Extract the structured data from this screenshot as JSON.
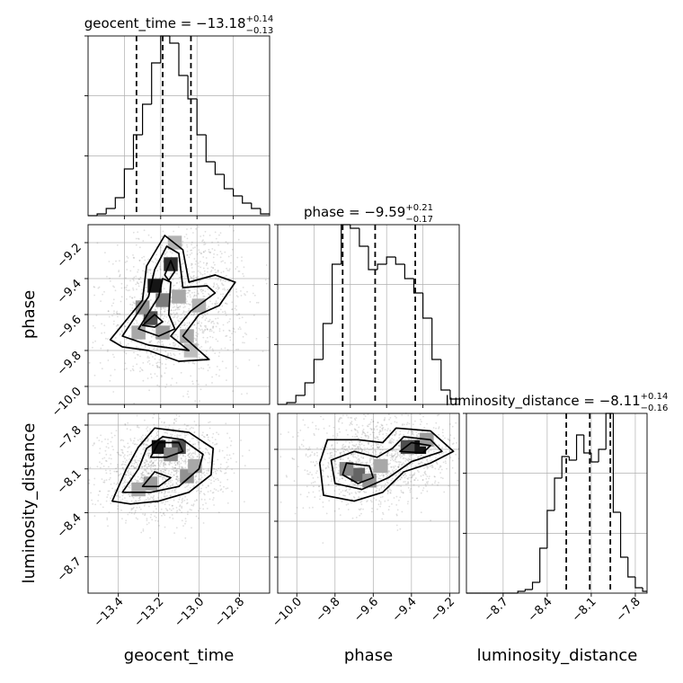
{
  "figure": {
    "type": "corner_plot",
    "parameters": [
      "geocent_time",
      "phase",
      "luminosity_distance"
    ]
  },
  "chart_data": [
    {
      "id": "hist_geocent_time",
      "type": "bar",
      "subtype": "step-histogram",
      "title": {
        "main": "geocent_time = −13.18",
        "sup": "+0.14",
        "sub": "−0.13"
      },
      "xlim": [
        -13.55,
        -12.65
      ],
      "ylim": [
        0,
        1
      ],
      "bin_edges": [
        -13.55,
        -13.505,
        -13.46,
        -13.415,
        -13.37,
        -13.325,
        -13.28,
        -13.235,
        -13.19,
        -13.145,
        -13.1,
        -13.055,
        -13.01,
        -12.965,
        -12.92,
        -12.875,
        -12.83,
        -12.785,
        -12.74,
        -12.695,
        -12.65
      ],
      "counts": [
        0.0,
        0.01,
        0.04,
        0.1,
        0.26,
        0.45,
        0.62,
        0.85,
        1.0,
        0.96,
        0.78,
        0.65,
        0.45,
        0.3,
        0.23,
        0.15,
        0.11,
        0.07,
        0.04,
        0.01
      ],
      "quantiles": [
        -13.31,
        -13.18,
        -13.04
      ],
      "grid": true,
      "legend": "none",
      "show_xticklabels": false,
      "show_yticklabels": false
    },
    {
      "id": "hist_phase",
      "type": "bar",
      "subtype": "step-histogram",
      "title": {
        "main": "phase = −9.59",
        "sup": "+0.21",
        "sub": "−0.17"
      },
      "xlim": [
        -10.1,
        -9.15
      ],
      "ylim": [
        0,
        1
      ],
      "bin_edges": [
        -10.1,
        -10.0525,
        -10.005,
        -9.9575,
        -9.91,
        -9.8625,
        -9.815,
        -9.7675,
        -9.72,
        -9.6725,
        -9.625,
        -9.5775,
        -9.53,
        -9.4825,
        -9.435,
        -9.3875,
        -9.34,
        -9.2925,
        -9.245,
        -9.1975,
        -9.15
      ],
      "counts": [
        0.0,
        0.01,
        0.05,
        0.12,
        0.25,
        0.45,
        0.78,
        1.0,
        0.98,
        0.88,
        0.75,
        0.78,
        0.82,
        0.78,
        0.7,
        0.62,
        0.48,
        0.25,
        0.08,
        0.03
      ],
      "quantiles": [
        -9.76,
        -9.59,
        -9.38
      ],
      "grid": true,
      "legend": "none",
      "show_xticklabels": false,
      "show_yticklabels": false
    },
    {
      "id": "hist_luminosity_distance",
      "type": "bar",
      "subtype": "step-histogram",
      "title": {
        "main": "luminosity_distance = −8.11",
        "sup": "+0.14",
        "sub": "−0.16"
      },
      "xlim": [
        -8.95,
        -7.72
      ],
      "ylim": [
        0,
        1
      ],
      "bin_edges": [
        -8.95,
        -8.9,
        -8.85,
        -8.8,
        -8.75,
        -8.7,
        -8.65,
        -8.6,
        -8.55,
        -8.5,
        -8.45,
        -8.4,
        -8.35,
        -8.3,
        -8.25,
        -8.2,
        -8.15,
        -8.1,
        -8.05,
        -8.0,
        -7.95,
        -7.9,
        -7.85,
        -7.8,
        -7.75,
        -7.72
      ],
      "counts": [
        0,
        0,
        0,
        0,
        0,
        0,
        0,
        0.01,
        0.02,
        0.06,
        0.25,
        0.46,
        0.64,
        0.76,
        0.74,
        0.88,
        0.78,
        0.73,
        0.8,
        1.0,
        0.45,
        0.2,
        0.09,
        0.03,
        0.01
      ],
      "quantiles": [
        -8.27,
        -8.11,
        -7.97
      ],
      "xticks": [
        -8.7,
        -8.4,
        -8.1,
        -7.8
      ],
      "xtick_labels": [
        "−8.7",
        "−8.4",
        "−8.1",
        "−7.8"
      ],
      "xlabel": "luminosity_distance",
      "grid": true,
      "legend": "none",
      "show_yticklabels": false
    },
    {
      "id": "density_geocent_time_phase",
      "type": "scatter",
      "subtype": "2d-density-contours",
      "x_param": "geocent_time",
      "y_param": "phase",
      "xlim": [
        -13.55,
        -12.65
      ],
      "ylim": [
        -10.1,
        -9.1
      ],
      "yticks": [
        -9.2,
        -9.4,
        -9.6,
        -9.8,
        -10.0
      ],
      "ytick_labels": [
        "−9.2",
        "−9.4",
        "−9.6",
        "−9.8",
        "−10.0"
      ],
      "ylabel": "phase",
      "contours": [
        [
          [
            -13.44,
            -9.74
          ],
          [
            -13.28,
            -9.52
          ],
          [
            -13.26,
            -9.33
          ],
          [
            -13.17,
            -9.16
          ],
          [
            -13.08,
            -9.24
          ],
          [
            -13.05,
            -9.42
          ],
          [
            -12.92,
            -9.38
          ],
          [
            -12.82,
            -9.42
          ],
          [
            -12.9,
            -9.55
          ],
          [
            -13.0,
            -9.6
          ],
          [
            -13.08,
            -9.72
          ],
          [
            -12.95,
            -9.85
          ],
          [
            -13.1,
            -9.86
          ],
          [
            -13.25,
            -9.8
          ],
          [
            -13.38,
            -9.78
          ]
        ],
        [
          [
            -13.38,
            -9.72
          ],
          [
            -13.25,
            -9.5
          ],
          [
            -13.22,
            -9.35
          ],
          [
            -13.16,
            -9.22
          ],
          [
            -13.1,
            -9.26
          ],
          [
            -13.08,
            -9.45
          ],
          [
            -12.96,
            -9.44
          ],
          [
            -12.92,
            -9.48
          ],
          [
            -13.04,
            -9.58
          ],
          [
            -13.14,
            -9.72
          ],
          [
            -13.05,
            -9.8
          ],
          [
            -13.25,
            -9.77
          ]
        ],
        [
          [
            -13.3,
            -9.68
          ],
          [
            -13.2,
            -9.5
          ],
          [
            -13.18,
            -9.4
          ],
          [
            -13.14,
            -9.42
          ],
          [
            -13.15,
            -9.6
          ],
          [
            -13.12,
            -9.68
          ],
          [
            -13.2,
            -9.72
          ]
        ],
        [
          [
            -13.28,
            -9.66
          ],
          [
            -13.22,
            -9.6
          ],
          [
            -13.18,
            -9.64
          ],
          [
            -13.22,
            -9.67
          ]
        ],
        [
          [
            -13.17,
            -9.38
          ],
          [
            -13.14,
            -9.3
          ],
          [
            -13.12,
            -9.36
          ],
          [
            -13.15,
            -9.41
          ]
        ]
      ],
      "density_cells": [
        [
          -13.22,
          -9.44,
          0.95
        ],
        [
          -13.14,
          -9.32,
          0.85
        ],
        [
          -13.24,
          -9.62,
          0.7
        ],
        [
          -13.18,
          -9.52,
          0.5
        ],
        [
          -13.28,
          -9.56,
          0.4
        ],
        [
          -13.18,
          -9.7,
          0.35
        ],
        [
          -13.06,
          -9.72,
          0.3
        ],
        [
          -13.3,
          -9.7,
          0.3
        ],
        [
          -13.1,
          -9.5,
          0.3
        ],
        [
          -13.0,
          -9.55,
          0.25
        ],
        [
          -13.12,
          -9.2,
          0.25
        ],
        [
          -13.04,
          -9.8,
          0.2
        ]
      ],
      "grid": true,
      "legend": "none",
      "show_xticklabels": false
    },
    {
      "id": "density_geocent_time_luminosity_distance",
      "type": "scatter",
      "subtype": "2d-density-contours",
      "x_param": "geocent_time",
      "y_param": "luminosity_distance",
      "xlim": [
        -13.55,
        -12.65
      ],
      "ylim": [
        -8.95,
        -7.72
      ],
      "xticks": [
        -13.4,
        -13.2,
        -13.0,
        -12.8
      ],
      "xtick_labels": [
        "−13.4",
        "−13.2",
        "−13.0",
        "−12.8"
      ],
      "yticks": [
        -7.8,
        -8.1,
        -8.4,
        -8.7
      ],
      "ytick_labels": [
        "−7.8",
        "−8.1",
        "−8.4",
        "−8.7"
      ],
      "xlabel": "geocent_time",
      "ylabel": "luminosity_distance",
      "contours": [
        [
          [
            -13.43,
            -8.32
          ],
          [
            -13.36,
            -8.1
          ],
          [
            -13.3,
            -7.95
          ],
          [
            -13.22,
            -7.82
          ],
          [
            -13.05,
            -7.85
          ],
          [
            -12.93,
            -7.96
          ],
          [
            -12.94,
            -8.14
          ],
          [
            -13.05,
            -8.26
          ],
          [
            -13.2,
            -8.32
          ],
          [
            -13.34,
            -8.34
          ]
        ],
        [
          [
            -13.38,
            -8.26
          ],
          [
            -13.3,
            -8.1
          ],
          [
            -13.26,
            -7.96
          ],
          [
            -13.18,
            -7.88
          ],
          [
            -13.08,
            -7.9
          ],
          [
            -12.98,
            -8.0
          ],
          [
            -13.0,
            -8.1
          ],
          [
            -13.1,
            -8.22
          ],
          [
            -13.24,
            -8.26
          ]
        ],
        [
          [
            -13.28,
            -8.22
          ],
          [
            -13.22,
            -8.12
          ],
          [
            -13.14,
            -8.16
          ],
          [
            -13.2,
            -8.22
          ]
        ],
        [
          [
            -13.24,
            -8.02
          ],
          [
            -13.2,
            -7.92
          ],
          [
            -13.1,
            -7.92
          ],
          [
            -13.08,
            -7.98
          ],
          [
            -13.16,
            -8.02
          ]
        ]
      ],
      "density_cells": [
        [
          -13.2,
          -7.95,
          0.95
        ],
        [
          -13.1,
          -7.95,
          0.7
        ],
        [
          -13.14,
          -8.0,
          0.45
        ],
        [
          -13.06,
          -8.15,
          0.4
        ],
        [
          -13.24,
          -8.2,
          0.35
        ],
        [
          -13.3,
          -8.24,
          0.3
        ],
        [
          -13.02,
          -8.08,
          0.3
        ]
      ],
      "grid": true,
      "legend": "none"
    },
    {
      "id": "density_phase_luminosity_distance",
      "type": "scatter",
      "subtype": "2d-density-contours",
      "x_param": "phase",
      "y_param": "luminosity_distance",
      "xlim": [
        -10.1,
        -9.15
      ],
      "ylim": [
        -8.95,
        -7.72
      ],
      "xticks": [
        -10.0,
        -9.8,
        -9.6,
        -9.4,
        -9.2
      ],
      "xtick_labels": [
        "−10.0",
        "−9.8",
        "−9.6",
        "−9.4",
        "−9.2"
      ],
      "xlabel": "phase",
      "contours": [
        [
          [
            -9.86,
            -8.28
          ],
          [
            -9.88,
            -8.06
          ],
          [
            -9.84,
            -7.9
          ],
          [
            -9.68,
            -7.9
          ],
          [
            -9.55,
            -7.92
          ],
          [
            -9.48,
            -7.82
          ],
          [
            -9.3,
            -7.84
          ],
          [
            -9.18,
            -7.98
          ],
          [
            -9.3,
            -8.06
          ],
          [
            -9.44,
            -8.12
          ],
          [
            -9.55,
            -8.26
          ],
          [
            -9.7,
            -8.32
          ]
        ],
        [
          [
            -9.8,
            -8.2
          ],
          [
            -9.82,
            -8.04
          ],
          [
            -9.7,
            -7.98
          ],
          [
            -9.58,
            -8.02
          ],
          [
            -9.5,
            -7.96
          ],
          [
            -9.44,
            -7.88
          ],
          [
            -9.3,
            -7.9
          ],
          [
            -9.24,
            -7.98
          ],
          [
            -9.4,
            -8.05
          ],
          [
            -9.52,
            -8.16
          ],
          [
            -9.66,
            -8.24
          ]
        ],
        [
          [
            -9.76,
            -8.14
          ],
          [
            -9.74,
            -8.06
          ],
          [
            -9.62,
            -8.08
          ],
          [
            -9.6,
            -8.16
          ],
          [
            -9.68,
            -8.2
          ]
        ],
        [
          [
            -9.46,
            -7.98
          ],
          [
            -9.4,
            -7.92
          ],
          [
            -9.3,
            -7.94
          ],
          [
            -9.34,
            -7.99
          ]
        ]
      ],
      "density_cells": [
        [
          -9.36,
          -7.95,
          0.95
        ],
        [
          -9.42,
          -7.95,
          0.7
        ],
        [
          -9.68,
          -8.14,
          0.6
        ],
        [
          -9.74,
          -8.1,
          0.45
        ],
        [
          -9.62,
          -8.18,
          0.4
        ],
        [
          -9.56,
          -8.08,
          0.3
        ],
        [
          -9.32,
          -7.9,
          0.35
        ]
      ],
      "grid": true,
      "legend": "none"
    }
  ]
}
